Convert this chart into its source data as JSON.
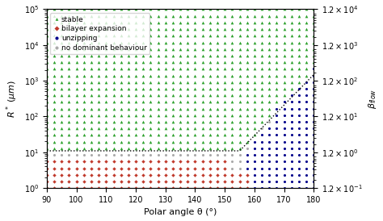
{
  "xlabel": "Polar angle θ (°)",
  "ylabel_left": "$R^*$ ($\\mu m$)",
  "ylabel_right": "$\\beta_{flow}$",
  "xlim": [
    90,
    180
  ],
  "ylim": [
    1.0,
    100000.0
  ],
  "beta_ylim_min": 0.12,
  "beta_ylim_max": 12000.0,
  "beta_ticks": [
    0.12,
    1.2,
    12.0,
    120.0,
    1200.0,
    12000.0
  ],
  "beta_tick_labels": [
    "$1.2\\times10^{-1}$",
    "$1.2\\times10^{0}$",
    "$1.2\\times10^{1}$",
    "$1.2\\times10^{2}$",
    "$1.2\\times10^{3}$",
    "$1.2\\times10^{4}$"
  ],
  "xticks": [
    90,
    100,
    110,
    120,
    130,
    140,
    150,
    160,
    170,
    180
  ],
  "stable_color": "#2ca02c",
  "bilayer_color": "#c0392b",
  "unzipping_color": "#00008b",
  "nodominant_color": "#aaaaaa",
  "legend_fontsize": 6.5,
  "tick_fontsize": 7,
  "label_fontsize": 8,
  "marker_size_tri": 7,
  "marker_size_circ": 5
}
